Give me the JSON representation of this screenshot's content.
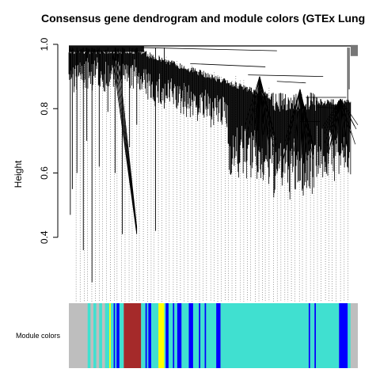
{
  "chart_data": {
    "type": "dendrogram",
    "title": "Consensus gene dendrogram and module colors (GTEx Lung",
    "ylabel": "Height",
    "xlabel": "",
    "ylim": [
      0.2,
      1.0
    ],
    "y_ticks": [
      0.4,
      0.6,
      0.8,
      1.0
    ],
    "y_tick_labels": [
      "0.4",
      "0.6",
      "0.8",
      "1.0"
    ],
    "color_bar_label": "Module colors",
    "module_colors": {
      "grey": "#bebebe",
      "turquoise": "#40e0d0",
      "blue": "#0000ff",
      "brown": "#a52a2a",
      "yellow": "#ffff00"
    },
    "module_color_segments": [
      [
        "grey",
        0.0,
        0.065
      ],
      [
        "turquoise",
        0.065,
        0.075
      ],
      [
        "grey",
        0.075,
        0.085
      ],
      [
        "turquoise",
        0.085,
        0.095
      ],
      [
        "grey",
        0.095,
        0.105
      ],
      [
        "turquoise",
        0.105,
        0.115
      ],
      [
        "grey",
        0.115,
        0.125
      ],
      [
        "turquoise",
        0.125,
        0.14
      ],
      [
        "yellow",
        0.14,
        0.145
      ],
      [
        "turquoise",
        0.145,
        0.155
      ],
      [
        "blue",
        0.155,
        0.16
      ],
      [
        "turquoise",
        0.16,
        0.165
      ],
      [
        "blue",
        0.165,
        0.175
      ],
      [
        "turquoise",
        0.175,
        0.19
      ],
      [
        "brown",
        0.19,
        0.25
      ],
      [
        "turquoise",
        0.25,
        0.265
      ],
      [
        "blue",
        0.265,
        0.27
      ],
      [
        "turquoise",
        0.27,
        0.275
      ],
      [
        "blue",
        0.275,
        0.285
      ],
      [
        "turquoise",
        0.285,
        0.31
      ],
      [
        "yellow",
        0.31,
        0.33
      ],
      [
        "turquoise",
        0.33,
        0.335
      ],
      [
        "blue",
        0.335,
        0.345
      ],
      [
        "turquoise",
        0.345,
        0.36
      ],
      [
        "blue",
        0.36,
        0.365
      ],
      [
        "turquoise",
        0.365,
        0.375
      ],
      [
        "blue",
        0.375,
        0.39
      ],
      [
        "turquoise",
        0.39,
        0.415
      ],
      [
        "blue",
        0.415,
        0.43
      ],
      [
        "turquoise",
        0.43,
        0.45
      ],
      [
        "blue",
        0.45,
        0.455
      ],
      [
        "turquoise",
        0.455,
        0.47
      ],
      [
        "blue",
        0.47,
        0.475
      ],
      [
        "turquoise",
        0.475,
        0.51
      ],
      [
        "blue",
        0.51,
        0.525
      ],
      [
        "turquoise",
        0.525,
        0.83
      ],
      [
        "blue",
        0.83,
        0.835
      ],
      [
        "turquoise",
        0.835,
        0.85
      ],
      [
        "blue",
        0.85,
        0.855
      ],
      [
        "turquoise",
        0.855,
        0.935
      ],
      [
        "blue",
        0.935,
        0.965
      ],
      [
        "turquoise",
        0.965,
        0.975
      ],
      [
        "grey",
        0.975,
        1.0
      ]
    ]
  }
}
